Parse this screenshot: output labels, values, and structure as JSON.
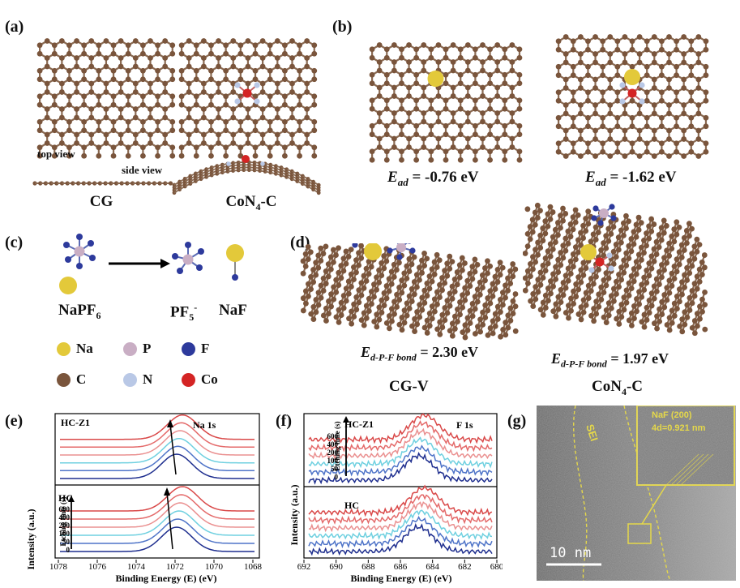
{
  "panels": {
    "a": {
      "label": "(a)",
      "top_view": "top view",
      "side_view": "side view",
      "left_name": "CG",
      "right_name_main": "CoN",
      "right_name_sub": "4",
      "right_name_tail": "-C"
    },
    "b": {
      "label": "(b)",
      "energy_symbol": "E",
      "energy_sub": "ad",
      "left_value": " = -0.76 eV",
      "right_value": " = -1.62 eV"
    },
    "c": {
      "label": "(c)",
      "nap_main": "NaPF",
      "nap_sub": "6",
      "pf_main": "PF",
      "pf_sub": "5",
      "pf_sup": "-",
      "naf": "NaF",
      "legend": [
        {
          "symbol": "Na",
          "color": "#e3c93a"
        },
        {
          "symbol": "P",
          "color": "#c9aec4"
        },
        {
          "symbol": "F",
          "color": "#2d3a9c"
        },
        {
          "symbol": "C",
          "color": "#7a553c"
        },
        {
          "symbol": "N",
          "color": "#b9c8e6"
        },
        {
          "symbol": "Co",
          "color": "#d42424"
        }
      ]
    },
    "d": {
      "label": "(d)",
      "energy_symbol": "E",
      "energy_sub": "d-P-F bond",
      "left_value": " = 2.30 eV",
      "right_value": " = 1.97 eV",
      "left_name": "CG-V",
      "right_name_main": "CoN",
      "right_name_sub": "4",
      "right_name_tail": "-C"
    },
    "e": {
      "label": "(e)",
      "top_sample": "HC-Z1",
      "bottom_sample": "HC",
      "peak": "Na 1s",
      "xlabel": "Binding Energy (E) (eV)",
      "ylabel": "Intensity (a.u.)",
      "etching_label": "Etching time (s)",
      "etching_ticks": [
        "600",
        "400",
        "200",
        "100",
        "50",
        "0"
      ],
      "xticks": [
        "1078",
        "1076",
        "1074",
        "1072",
        "1070",
        "1068"
      ]
    },
    "f": {
      "label": "(f)",
      "top_sample": "HC-Z1",
      "bottom_sample": "HC",
      "peak": "F 1s",
      "xlabel": "Binding Energy (E) (eV)",
      "ylabel": "Intensity (a.u.)",
      "etching_label": "Etching time (s)",
      "etching_ticks": [
        "600",
        "400",
        "200",
        "100",
        "50",
        "0"
      ],
      "xticks": [
        "692",
        "690",
        "688",
        "686",
        "684",
        "682",
        "680"
      ]
    },
    "g": {
      "label": "(g)",
      "sei": "SEI",
      "inset_line1": "NaF (200)",
      "inset_line2": "4d=0.921 nm",
      "scale": "10 nm"
    }
  },
  "colors": {
    "carbon": "#7a553c",
    "bond": "#8a6a52",
    "cobalt": "#d42424",
    "nitrogen": "#b9c8e6",
    "sodium": "#e3c93a",
    "phosphorus": "#c9aec4",
    "fluorine": "#2d3a9c",
    "curves": [
      "#1f2f8f",
      "#4f74c8",
      "#6fd0e0",
      "#ea9090",
      "#e46a6a",
      "#d94848"
    ]
  }
}
